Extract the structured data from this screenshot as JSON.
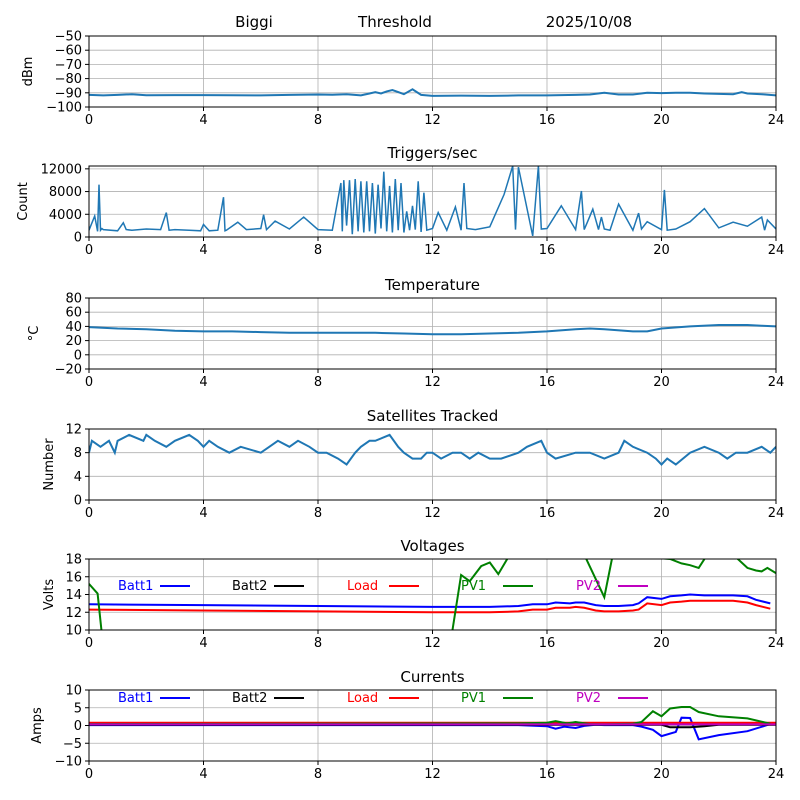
{
  "header": {
    "station": "Biggi",
    "mode": "Threshold",
    "date": "2025/10/08"
  },
  "chart_data": [
    {
      "type": "line",
      "title": "",
      "ylabel": "dBm",
      "xlim": [
        0,
        24
      ],
      "ylim": [
        -100,
        -50
      ],
      "xticks": [
        0,
        4,
        8,
        12,
        16,
        20,
        24
      ],
      "yticks": [
        -50,
        -60,
        -70,
        -80,
        -90,
        -100
      ],
      "ytick_labels": [
        "−50",
        "−60",
        "−70",
        "−80",
        "−90",
        "−100"
      ],
      "grid": true,
      "color": "#1f77b4",
      "x": [
        0,
        0.5,
        1,
        1.5,
        2,
        3,
        4,
        5,
        6,
        7,
        8,
        8.5,
        9,
        9.5,
        9.8,
        10,
        10.2,
        10.4,
        10.6,
        10.8,
        11,
        11.3,
        11.6,
        12,
        13,
        14,
        15,
        16,
        17,
        17.5,
        18,
        18.5,
        19,
        19.5,
        20,
        20.5,
        21,
        21.5,
        22,
        22.5,
        22.8,
        23,
        23.5,
        24
      ],
      "y": [
        -91.5,
        -91.8,
        -91.5,
        -91,
        -91.7,
        -91.6,
        -91.6,
        -91.7,
        -91.8,
        -91.5,
        -91.2,
        -91.4,
        -91,
        -91.8,
        -90.5,
        -89.5,
        -90.5,
        -89,
        -88,
        -89.5,
        -91,
        -87.5,
        -91.5,
        -92.2,
        -92,
        -92.2,
        -91.8,
        -91.8,
        -91.5,
        -91.2,
        -90,
        -91.2,
        -91.2,
        -90,
        -90.2,
        -90,
        -90,
        -90.5,
        -90.8,
        -91,
        -89.5,
        -90.5,
        -91,
        -91.8
      ]
    },
    {
      "type": "line",
      "title": "Triggers/sec",
      "ylabel": "Count",
      "xlim": [
        0,
        24
      ],
      "ylim": [
        0,
        12500
      ],
      "xticks": [
        0,
        4,
        8,
        12,
        16,
        20,
        24
      ],
      "yticks": [
        0,
        4000,
        8000,
        12000
      ],
      "ytick_labels": [
        "0",
        "4000",
        "8000",
        "12000"
      ],
      "grid": true,
      "color": "#1f77b4",
      "x": [
        0,
        0.2,
        0.3,
        0.35,
        0.4,
        0.45,
        0.5,
        1,
        1.2,
        1.3,
        1.5,
        2,
        2.5,
        2.7,
        2.8,
        3,
        3.5,
        3.9,
        4,
        4.2,
        4.5,
        4.7,
        4.75,
        4.8,
        5.2,
        5.5,
        6,
        6.1,
        6.2,
        6.5,
        7,
        7.5,
        8,
        8.5,
        8.8,
        8.85,
        8.9,
        9,
        9.1,
        9.2,
        9.3,
        9.4,
        9.5,
        9.6,
        9.7,
        9.8,
        9.9,
        10,
        10.1,
        10.2,
        10.3,
        10.4,
        10.5,
        10.6,
        10.7,
        10.8,
        10.9,
        11,
        11.1,
        11.2,
        11.3,
        11.4,
        11.5,
        11.6,
        11.7,
        11.8,
        12,
        12.2,
        12.5,
        12.8,
        13,
        13.1,
        13.2,
        13.5,
        14,
        14.5,
        14.8,
        14.9,
        15,
        15.5,
        15.7,
        15.8,
        16,
        16.5,
        17,
        17.2,
        17.3,
        17.4,
        17.6,
        17.8,
        17.9,
        18,
        18.2,
        18.5,
        19,
        19.2,
        19.3,
        19.5,
        20,
        20.1,
        20.2,
        20.5,
        21,
        21.5,
        22,
        22.5,
        23,
        23.5,
        23.6,
        23.7,
        24
      ],
      "y": [
        1200,
        3700,
        1000,
        9200,
        1200,
        1500,
        1300,
        1100,
        2500,
        1300,
        1200,
        1400,
        1300,
        4300,
        1200,
        1300,
        1200,
        1100,
        2200,
        1100,
        1200,
        7000,
        1100,
        1200,
        2600,
        1300,
        1500,
        3900,
        1300,
        2800,
        1400,
        3500,
        1300,
        1200,
        9500,
        1000,
        10000,
        2000,
        10000,
        500,
        10200,
        1000,
        9800,
        800,
        9800,
        1000,
        9500,
        600,
        9200,
        1500,
        11500,
        1000,
        9000,
        800,
        10200,
        1200,
        9500,
        800,
        4500,
        1200,
        5500,
        1300,
        9800,
        900,
        7800,
        1200,
        1500,
        4300,
        1200,
        5300,
        1200,
        9500,
        1500,
        1300,
        1800,
        7500,
        12500,
        1300,
        12300,
        200,
        12500,
        1400,
        1500,
        5500,
        1300,
        8100,
        1300,
        2500,
        4900,
        1300,
        3500,
        1400,
        1200,
        5800,
        1200,
        4200,
        1400,
        2700,
        1300,
        8300,
        1200,
        1400,
        2700,
        5000,
        1600,
        2600,
        1900,
        3500,
        1200,
        3000,
        1400
      ]
    },
    {
      "type": "line",
      "title": "Temperature",
      "ylabel": "°C",
      "xlim": [
        0,
        24
      ],
      "ylim": [
        -20,
        80
      ],
      "xticks": [
        0,
        4,
        8,
        12,
        16,
        20,
        24
      ],
      "yticks": [
        -20,
        0,
        20,
        40,
        60,
        80
      ],
      "ytick_labels": [
        "−20",
        "0",
        "20",
        "40",
        "60",
        "80"
      ],
      "grid": true,
      "color": "#1f77b4",
      "x": [
        0,
        1,
        2,
        3,
        4,
        5,
        6,
        7,
        8,
        9,
        10,
        11,
        12,
        13,
        14,
        15,
        16,
        17,
        17.5,
        18,
        19,
        19.5,
        20,
        21,
        22,
        23,
        23.5,
        24
      ],
      "y": [
        39,
        37,
        36,
        34,
        33,
        33,
        32,
        31,
        31,
        31,
        31,
        30,
        29,
        29,
        30,
        31,
        33,
        36,
        37,
        36,
        33,
        33,
        37,
        40,
        42,
        42,
        41,
        40
      ]
    },
    {
      "type": "line",
      "title": "Satellites Tracked",
      "ylabel": "Number",
      "xlim": [
        0,
        24
      ],
      "ylim": [
        0,
        12
      ],
      "xticks": [
        0,
        4,
        8,
        12,
        16,
        20,
        24
      ],
      "yticks": [
        0,
        4,
        8,
        12
      ],
      "ytick_labels": [
        "0",
        "4",
        "8",
        "12"
      ],
      "grid": true,
      "color": "#1f77b4",
      "x": [
        0,
        0.1,
        0.4,
        0.7,
        0.9,
        1,
        1.4,
        1.9,
        2,
        2.3,
        2.7,
        3,
        3.5,
        3.8,
        4,
        4.2,
        4.5,
        4.9,
        5.3,
        6,
        6.3,
        6.6,
        7,
        7.3,
        7.7,
        8,
        8.3,
        8.7,
        9,
        9.3,
        9.5,
        9.8,
        10,
        10.5,
        10.8,
        11,
        11.3,
        11.6,
        11.8,
        12,
        12.3,
        12.7,
        13,
        13.3,
        13.6,
        14,
        14.4,
        15,
        15.3,
        15.8,
        15.9,
        16,
        16.3,
        17,
        17.5,
        18,
        18.5,
        18.7,
        19,
        19.5,
        19.8,
        20,
        20.2,
        20.5,
        21,
        21.5,
        22,
        22.3,
        22.6,
        23,
        23.5,
        23.8,
        24
      ],
      "y": [
        8,
        10,
        9,
        10,
        8,
        10,
        11,
        10,
        11,
        10,
        9,
        10,
        11,
        10,
        9,
        10,
        9,
        8,
        9,
        8,
        9,
        10,
        9,
        10,
        9,
        8,
        8,
        7,
        6,
        8,
        9,
        10,
        10,
        11,
        9,
        8,
        7,
        7,
        8,
        8,
        7,
        8,
        8,
        7,
        8,
        7,
        7,
        8,
        9,
        10,
        9,
        8,
        7,
        8,
        8,
        7,
        8,
        10,
        9,
        8,
        7,
        6,
        7,
        6,
        8,
        9,
        8,
        7,
        8,
        8,
        9,
        8,
        9
      ]
    },
    {
      "type": "line",
      "title": "Voltages",
      "ylabel": "Volts",
      "xlim": [
        0,
        24
      ],
      "ylim": [
        10,
        18
      ],
      "xticks": [
        0,
        4,
        8,
        12,
        16,
        20,
        24
      ],
      "yticks": [
        10,
        12,
        14,
        16,
        18
      ],
      "ytick_labels": [
        "10",
        "12",
        "14",
        "16",
        "18"
      ],
      "grid": true,
      "legend": "inline-top",
      "series": [
        {
          "name": "Batt1",
          "color": "#0000ff",
          "x": [
            0,
            4,
            8,
            12,
            14,
            15,
            15.5,
            16,
            16.3,
            16.8,
            17,
            17.3,
            17.7,
            18,
            18.5,
            19,
            19.2,
            19.5,
            20,
            20.3,
            20.7,
            21,
            21.5,
            22,
            22.5,
            23,
            23.3,
            23.8
          ],
          "y": [
            12.9,
            12.8,
            12.7,
            12.6,
            12.6,
            12.7,
            12.9,
            12.9,
            13.1,
            13.0,
            13.1,
            13.1,
            12.8,
            12.7,
            12.7,
            12.8,
            13.0,
            13.7,
            13.5,
            13.8,
            13.9,
            14.0,
            13.9,
            13.9,
            13.9,
            13.8,
            13.4,
            13.0
          ]
        },
        {
          "name": "Batt2",
          "color": "#000000",
          "x": [],
          "y": []
        },
        {
          "name": "Load",
          "color": "#ff0000",
          "x": [
            0,
            4,
            8,
            12,
            14,
            15,
            15.5,
            16,
            16.3,
            16.8,
            17,
            17.3,
            17.7,
            18,
            18.5,
            19,
            19.2,
            19.5,
            20,
            20.3,
            20.7,
            21,
            21.5,
            22,
            22.5,
            23,
            23.3,
            23.8
          ],
          "y": [
            12.3,
            12.2,
            12.1,
            12.0,
            12.0,
            12.1,
            12.3,
            12.3,
            12.5,
            12.5,
            12.6,
            12.5,
            12.2,
            12.1,
            12.1,
            12.2,
            12.3,
            13.0,
            12.8,
            13.1,
            13.2,
            13.3,
            13.3,
            13.3,
            13.3,
            13.1,
            12.8,
            12.4
          ]
        },
        {
          "name": "PV1",
          "color": "#008000",
          "x": [
            0,
            0.3,
            0.5,
            12.6,
            13,
            13.3,
            13.7,
            14,
            14.3,
            14.7,
            17.3,
            18,
            18.3,
            20.3,
            20.7,
            21,
            21.3,
            21.6,
            22.5,
            23,
            23.3,
            23.5,
            23.7,
            24
          ],
          "y": [
            15.2,
            14.1,
            8,
            8,
            16.2,
            15.5,
            17.2,
            17.6,
            16.3,
            18.5,
            18.5,
            13.7,
            18.5,
            18.0,
            17.5,
            17.3,
            17.0,
            18.5,
            18.5,
            17.0,
            16.7,
            16.6,
            17.0,
            16.4
          ]
        },
        {
          "name": "PV2",
          "color": "#bf00bf",
          "x": [],
          "y": []
        }
      ]
    },
    {
      "type": "line",
      "title": "Currents",
      "ylabel": "Amps",
      "xlim": [
        0,
        24
      ],
      "ylim": [
        -10,
        10
      ],
      "xticks": [
        0,
        4,
        8,
        12,
        16,
        20,
        24
      ],
      "yticks": [
        -10,
        -5,
        0,
        5,
        10
      ],
      "ytick_labels": [
        "−10",
        "−5",
        "0",
        "5",
        "10"
      ],
      "grid": true,
      "legend": "inline-top",
      "series": [
        {
          "name": "Batt1",
          "color": "#0000ff",
          "x": [
            0,
            15,
            16,
            16.3,
            16.6,
            17,
            17.3,
            17.7,
            18,
            19,
            19.3,
            19.7,
            20,
            20.5,
            20.7,
            21,
            21.3,
            22,
            23,
            23.8
          ],
          "y": [
            0.1,
            0.1,
            -0.2,
            -0.9,
            -0.3,
            -0.7,
            -0.1,
            0.2,
            0.1,
            0.1,
            -0.3,
            -1.2,
            -3.0,
            -1.8,
            2.2,
            2.1,
            -3.9,
            -2.7,
            -1.6,
            0.4
          ]
        },
        {
          "name": "Batt2",
          "color": "#000000",
          "x": [
            0,
            20,
            20.3,
            21,
            21.5,
            22,
            24
          ],
          "y": [
            0.2,
            0.2,
            -0.5,
            -0.5,
            -0.2,
            0.2,
            0.2
          ]
        },
        {
          "name": "Load",
          "color": "#ff0000",
          "x": [
            0,
            24
          ],
          "y": [
            0.8,
            0.8
          ]
        },
        {
          "name": "PV1",
          "color": "#008000",
          "x": [
            0,
            15,
            16,
            16.3,
            16.7,
            17,
            17.5,
            18,
            19,
            19.3,
            19.7,
            20,
            20.3,
            20.7,
            21,
            21.3,
            22,
            23,
            23.8
          ],
          "y": [
            0.4,
            0.6,
            0.8,
            1.2,
            0.6,
            1.0,
            0.4,
            0.3,
            0.5,
            1.0,
            4.0,
            2.6,
            4.8,
            5.2,
            5.2,
            3.8,
            2.6,
            2.0,
            0.5
          ]
        },
        {
          "name": "PV2",
          "color": "#bf00bf",
          "x": [
            0,
            24
          ],
          "y": [
            0.3,
            0.3
          ]
        }
      ]
    }
  ]
}
